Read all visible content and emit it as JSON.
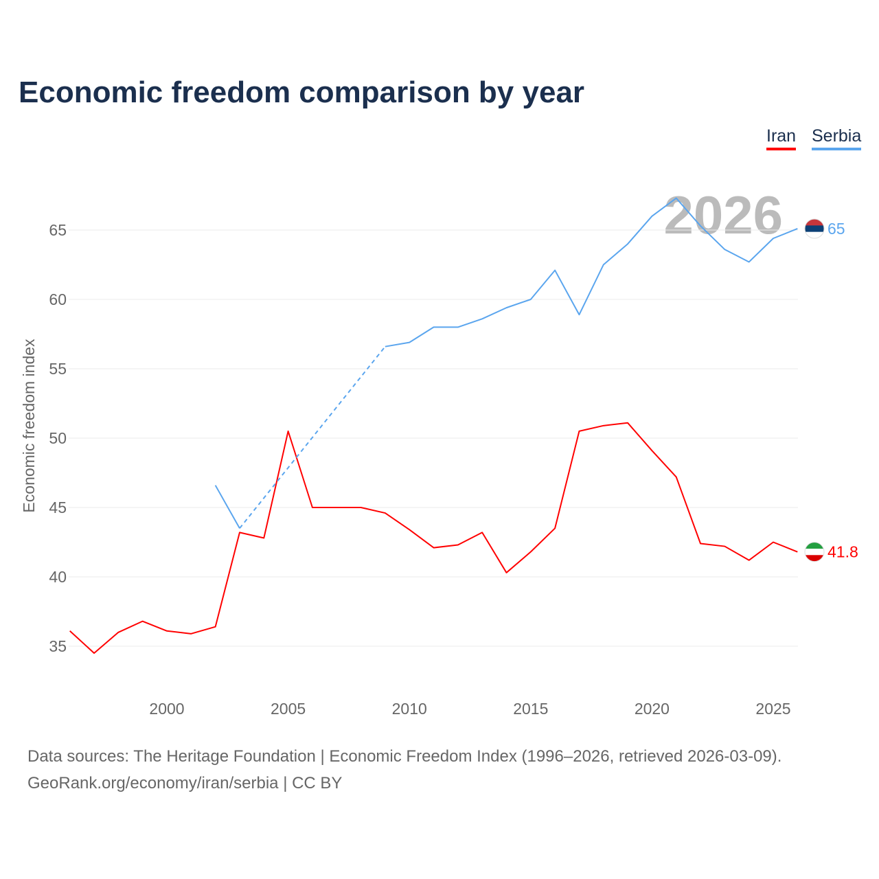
{
  "title": "Economic freedom comparison by year",
  "chart_data": {
    "type": "line",
    "title": "Economic freedom comparison by year",
    "xlabel": "",
    "ylabel": "Economic freedom index",
    "xlim": [
      1996,
      2026
    ],
    "ylim": [
      32,
      68
    ],
    "yticks": [
      35,
      40,
      45,
      50,
      55,
      60,
      65
    ],
    "xticks": [
      2000,
      2005,
      2010,
      2015,
      2020,
      2025
    ],
    "grid": true,
    "legend_placement": "top-right",
    "watermark_year": "2026",
    "x": [
      1996,
      1997,
      1998,
      1999,
      2000,
      2001,
      2002,
      2003,
      2004,
      2005,
      2006,
      2007,
      2008,
      2009,
      2010,
      2011,
      2012,
      2013,
      2014,
      2015,
      2016,
      2017,
      2018,
      2019,
      2020,
      2021,
      2022,
      2023,
      2024,
      2025,
      2026
    ],
    "series": [
      {
        "name": "Iran",
        "color": "#ff0000",
        "end_label": "41.8",
        "values": [
          36.1,
          34.5,
          36.0,
          36.8,
          36.1,
          35.9,
          36.4,
          43.2,
          42.8,
          50.5,
          45.0,
          45.0,
          45.0,
          44.6,
          43.4,
          42.1,
          42.3,
          43.2,
          40.3,
          41.8,
          43.5,
          50.5,
          50.9,
          51.1,
          49.1,
          47.2,
          42.4,
          42.2,
          41.2,
          42.5,
          41.8
        ]
      },
      {
        "name": "Serbia",
        "color": "#5aa5ee",
        "end_label": "65",
        "values": [
          null,
          null,
          null,
          null,
          null,
          null,
          46.6,
          43.5,
          null,
          null,
          null,
          null,
          null,
          56.6,
          56.9,
          58.0,
          58.0,
          58.6,
          59.4,
          60.0,
          62.1,
          58.9,
          62.5,
          64.0,
          66.0,
          67.3,
          65.3,
          63.6,
          62.7,
          64.4,
          65.1
        ]
      }
    ]
  },
  "sources": {
    "line1": "Data sources: The Heritage Foundation | Economic Freedom Index (1996–2026, retrieved 2026-03-09).",
    "line2": "GeoRank.org/economy/iran/serbia | CC BY"
  }
}
